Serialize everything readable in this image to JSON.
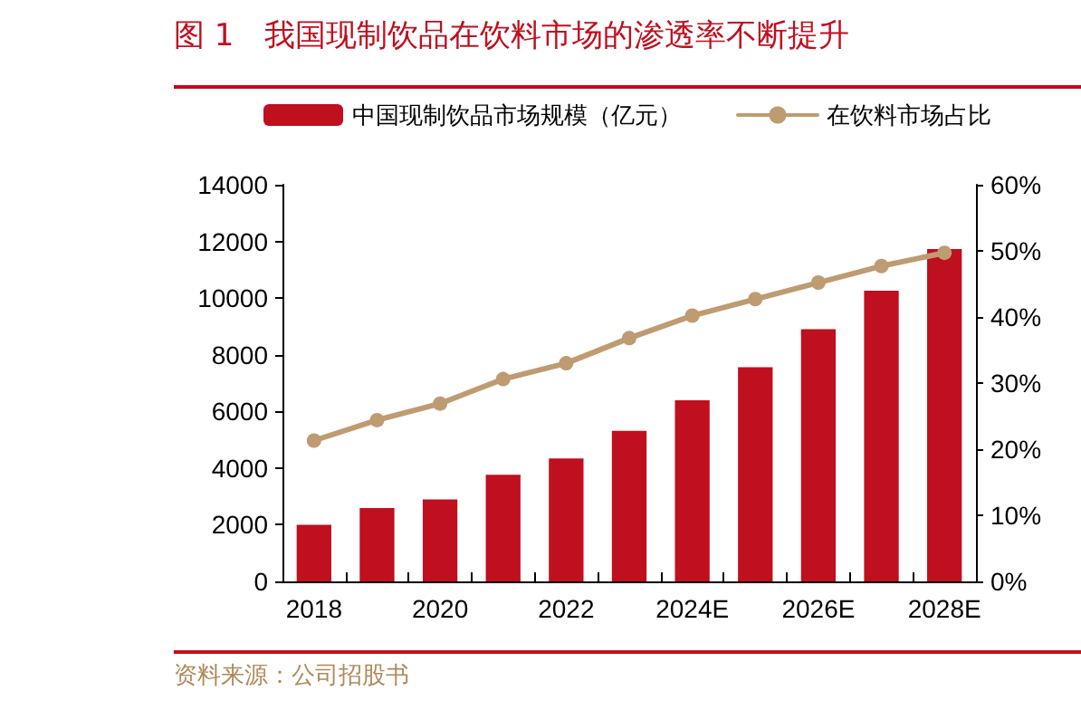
{
  "chart_data": {
    "type": "bar",
    "title": "图 1　我国现制饮品在饮料市场的渗透率不断提升",
    "categories": [
      "2018",
      null,
      "2020",
      null,
      "2022",
      null,
      "2024E",
      null,
      "2026E",
      null,
      "2028E"
    ],
    "series": [
      {
        "name": "中国现制饮品市场规模（亿元）",
        "color": "#c00f1e",
        "values": [
          2000,
          2590,
          2890,
          3760,
          4340,
          5310,
          6390,
          7560,
          8900,
          10260,
          11730
        ]
      },
      {
        "name": "在饮料市场占比",
        "type": "line",
        "axis": "y2",
        "color": "#bf9b72",
        "values": [
          21.3,
          24.4,
          26.9,
          30.6,
          33.0,
          36.8,
          40.2,
          42.7,
          45.2,
          47.7,
          49.7
        ]
      }
    ],
    "ylim": [
      0,
      14000
    ],
    "yticks": [
      0,
      2000,
      4000,
      6000,
      8000,
      10000,
      12000,
      14000
    ],
    "y2lim": [
      0,
      60
    ],
    "y2ticks": [
      {
        "value": 0,
        "label": "0%"
      },
      {
        "value": 10,
        "label": "10%"
      },
      {
        "value": 20,
        "label": "20%"
      },
      {
        "value": 30,
        "label": "30%"
      },
      {
        "value": 40,
        "label": "40%"
      },
      {
        "value": 50,
        "label": "50%"
      },
      {
        "value": 60,
        "label": "60%"
      }
    ],
    "legend": "top",
    "grid": false,
    "marker": "circle",
    "line_style": "solid",
    "annotations": [
      "资料来源：公司招股书"
    ]
  }
}
